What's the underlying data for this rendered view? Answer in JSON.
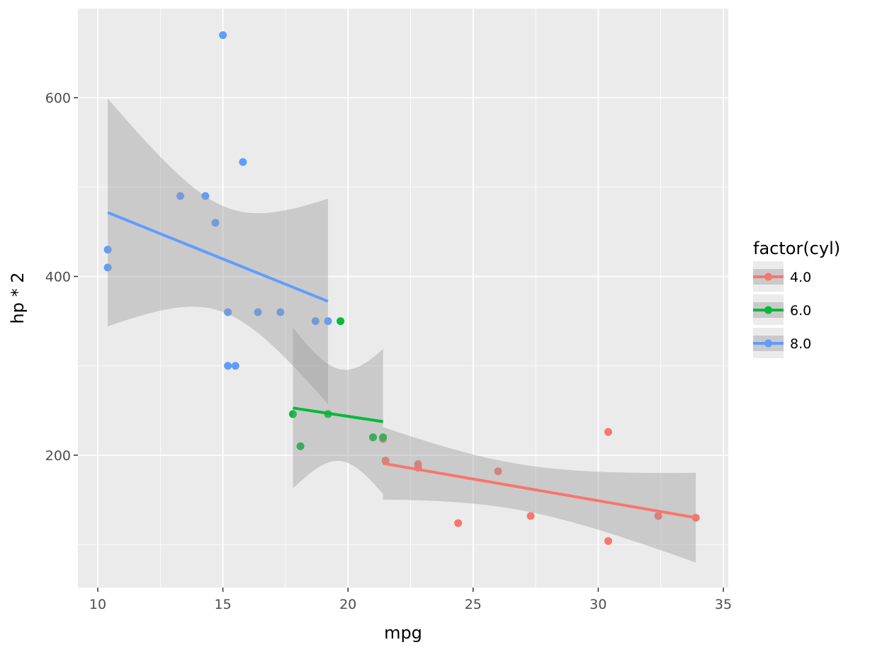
{
  "chart_data": {
    "type": "scatter",
    "title": "",
    "xlabel": "mpg",
    "ylabel": "hp * 2",
    "xlim": [
      9.2,
      35.3
    ],
    "ylim": [
      52,
      700
    ],
    "xticks": [
      10,
      15,
      20,
      25,
      30,
      35
    ],
    "xtick_labels": [
      "10",
      "15",
      "20",
      "25",
      "30",
      "35"
    ],
    "yticks": [
      200,
      400,
      600
    ],
    "ytick_labels": [
      "200",
      "400",
      "600"
    ],
    "grid": true,
    "smooth": "linear regression with 95% confidence band per group",
    "legend": {
      "title": "factor(cyl)",
      "placement": "right"
    },
    "series": [
      {
        "name": "4.0",
        "color": "#F8766D",
        "x": [
          22.8,
          24.4,
          22.8,
          32.4,
          30.4,
          33.9,
          21.5,
          27.3,
          26.0,
          30.4,
          21.4
        ],
        "y": [
          186,
          124,
          190,
          132,
          104,
          130,
          194,
          132,
          182,
          226,
          218
        ]
      },
      {
        "name": "6.0",
        "color": "#00BA38",
        "x": [
          21.0,
          21.0,
          21.4,
          18.1,
          19.2,
          17.8,
          19.7
        ],
        "y": [
          220,
          220,
          220,
          210,
          246,
          246,
          350
        ]
      },
      {
        "name": "8.0",
        "color": "#619CFF",
        "x": [
          18.7,
          14.3,
          16.4,
          17.3,
          15.2,
          10.4,
          10.4,
          14.7,
          15.5,
          15.2,
          13.3,
          19.2,
          15.8,
          15.0
        ],
        "y": [
          350,
          490,
          360,
          360,
          360,
          410,
          430,
          460,
          300,
          300,
          490,
          350,
          528,
          670
        ]
      }
    ]
  }
}
